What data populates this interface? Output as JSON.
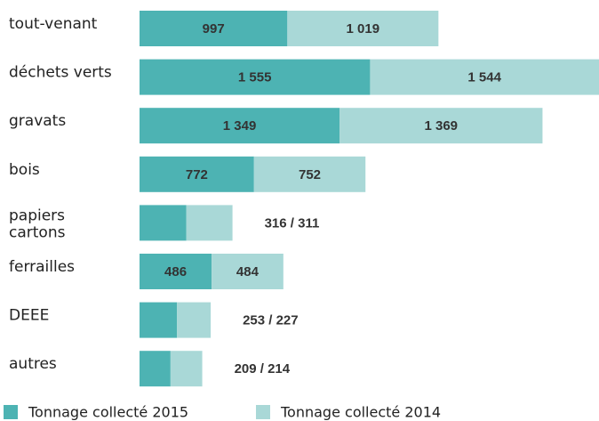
{
  "chart_data": {
    "type": "stacked_barh",
    "categories": [
      "tout-venant",
      "déchets verts",
      "gravats",
      "bois",
      "papiers\ncartons",
      "ferrailles",
      "DEEE",
      "autres"
    ],
    "series": [
      {
        "name": "Tonnage collecté 2015",
        "color": "#4db3b3",
        "values": [
          997,
          1555,
          1349,
          772,
          316,
          486,
          253,
          209
        ],
        "value_labels": [
          "997",
          "1 555",
          "1 349",
          "772",
          null,
          "486",
          null,
          null
        ]
      },
      {
        "name": "Tonnage collecté 2014",
        "color": "#a9d8d7",
        "values": [
          1019,
          1544,
          1369,
          752,
          311,
          484,
          227,
          214
        ],
        "value_labels": [
          "1 019",
          "1 544",
          "1 369",
          "752",
          null,
          "484",
          null,
          null
        ]
      }
    ],
    "outside_labels": [
      null,
      null,
      null,
      null,
      "316 / 311",
      null,
      "253 / 227",
      "209 / 214"
    ]
  }
}
